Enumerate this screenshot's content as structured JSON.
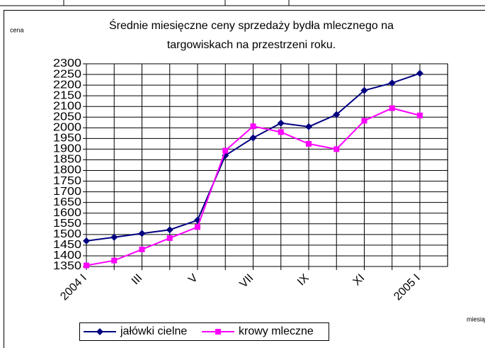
{
  "chart_data": {
    "type": "line",
    "title": [
      "Średnie miesięczne ceny sprzedaży bydła mlecznego na",
      "targowiskach na przestrzeni roku."
    ],
    "y_label": "cena",
    "x_label": "miesią",
    "categories": [
      "2004 I",
      null,
      "III",
      null,
      "V",
      null,
      "VII",
      null,
      "IX",
      null,
      "XI",
      null,
      "2005 I"
    ],
    "series": [
      {
        "name": "jałówki cielne",
        "color": "#000080",
        "marker": "diamond",
        "values": [
          1470,
          1487,
          1505,
          1522,
          1567,
          1870,
          1953,
          2022,
          2005,
          2062,
          2175,
          2210,
          2255
        ]
      },
      {
        "name": "krowy mleczne",
        "color": "#ff00ff",
        "marker": "square",
        "values": [
          1355,
          1378,
          1430,
          1483,
          1535,
          1893,
          2007,
          1980,
          1925,
          1900,
          2033,
          2092,
          2058
        ]
      }
    ],
    "ylim": [
      1350,
      2300
    ],
    "yticks": [
      1350,
      1400,
      1450,
      1500,
      1550,
      1600,
      1650,
      1700,
      1750,
      1800,
      1850,
      1900,
      1950,
      2000,
      2050,
      2100,
      2150,
      2200,
      2250,
      2300
    ],
    "grid": true,
    "legend": "bottom"
  }
}
